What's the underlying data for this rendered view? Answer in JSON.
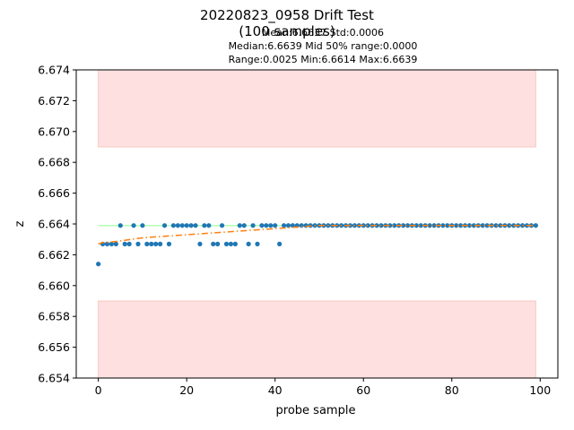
{
  "chart_data": {
    "type": "scatter",
    "title": "20220823_0958 Drift Test",
    "subtitle": "(100 samples)",
    "stats": {
      "line1": "Mean:6.6637  Std:0.0006",
      "line2": "Median:6.6639  Mid 50% range:0.0000",
      "line3": "Range:0.0025  Min:6.6614  Max:6.6639"
    },
    "xlabel": "probe sample",
    "ylabel": "z",
    "xlim": [
      -5,
      104
    ],
    "ylim": [
      6.654,
      6.674
    ],
    "xticks": [
      0,
      20,
      40,
      60,
      80,
      100
    ],
    "xtick_labels": [
      "0",
      "20",
      "40",
      "60",
      "80",
      "100"
    ],
    "yticks": [
      6.654,
      6.656,
      6.658,
      6.66,
      6.662,
      6.664,
      6.666,
      6.668,
      6.67,
      6.672,
      6.674
    ],
    "ytick_labels": [
      "6.654",
      "6.656",
      "6.658",
      "6.660",
      "6.662",
      "6.664",
      "6.666",
      "6.668",
      "6.670",
      "6.672",
      "6.674"
    ],
    "grid": false,
    "bands": [
      {
        "x": [
          0,
          99
        ],
        "y": [
          6.669,
          6.674
        ],
        "color": "#ffe0e0"
      },
      {
        "x": [
          0,
          99
        ],
        "y": [
          6.654,
          6.659
        ],
        "color": "#ffe0e0"
      }
    ],
    "reference_line": {
      "x": [
        0,
        99
      ],
      "y": 6.6639,
      "color": "#b2ffb2"
    },
    "trend_line": {
      "color": "#ff7f0e",
      "style": "dashdot",
      "x": [
        0,
        1,
        2,
        5,
        10,
        15,
        20,
        25,
        30,
        35,
        40,
        45,
        50,
        60,
        70,
        80,
        90,
        99
      ],
      "y": [
        6.6627,
        6.6628,
        6.6628,
        6.6629,
        6.6631,
        6.6632,
        6.6633,
        6.6634,
        6.6635,
        6.6636,
        6.6637,
        6.6638,
        6.6639,
        6.6639,
        6.6639,
        6.6639,
        6.6639,
        6.6639
      ]
    },
    "series": [
      {
        "color": "#1f77b4",
        "x": [
          0,
          1,
          2,
          3,
          4,
          5,
          6,
          7,
          8,
          9,
          10,
          11,
          12,
          13,
          14,
          15,
          16,
          17,
          18,
          19,
          20,
          21,
          22,
          23,
          24,
          25,
          26,
          27,
          28,
          29,
          30,
          31,
          32,
          33,
          34,
          35,
          36,
          37,
          38,
          39,
          40,
          41,
          42,
          43,
          44,
          45,
          46,
          47,
          48,
          49,
          50,
          51,
          52,
          53,
          54,
          55,
          56,
          57,
          58,
          59,
          60,
          61,
          62,
          63,
          64,
          65,
          66,
          67,
          68,
          69,
          70,
          71,
          72,
          73,
          74,
          75,
          76,
          77,
          78,
          79,
          80,
          81,
          82,
          83,
          84,
          85,
          86,
          87,
          88,
          89,
          90,
          91,
          92,
          93,
          94,
          95,
          96,
          97,
          98,
          99
        ],
        "y": [
          6.6614,
          6.6627,
          6.6627,
          6.6627,
          6.6627,
          6.6639,
          6.6627,
          6.6627,
          6.6639,
          6.6627,
          6.6639,
          6.6627,
          6.6627,
          6.6627,
          6.6627,
          6.6639,
          6.6627,
          6.6639,
          6.6639,
          6.6639,
          6.6639,
          6.6639,
          6.6639,
          6.6627,
          6.6639,
          6.6639,
          6.6627,
          6.6627,
          6.6639,
          6.6627,
          6.6627,
          6.6627,
          6.6639,
          6.6639,
          6.6627,
          6.6639,
          6.6627,
          6.6639,
          6.6639,
          6.6639,
          6.6639,
          6.6627,
          6.6639,
          6.6639,
          6.6639,
          6.6639,
          6.6639,
          6.6639,
          6.6639,
          6.6639,
          6.6639,
          6.6639,
          6.6639,
          6.6639,
          6.6639,
          6.6639,
          6.6639,
          6.6639,
          6.6639,
          6.6639,
          6.6639,
          6.6639,
          6.6639,
          6.6639,
          6.6639,
          6.6639,
          6.6639,
          6.6639,
          6.6639,
          6.6639,
          6.6639,
          6.6639,
          6.6639,
          6.6639,
          6.6639,
          6.6639,
          6.6639,
          6.6639,
          6.6639,
          6.6639,
          6.6639,
          6.6639,
          6.6639,
          6.6639,
          6.6639,
          6.6639,
          6.6639,
          6.6639,
          6.6639,
          6.6639,
          6.6639,
          6.6639,
          6.6639,
          6.6639,
          6.6639,
          6.6639,
          6.6639,
          6.6639,
          6.6639,
          6.6639
        ]
      }
    ]
  }
}
